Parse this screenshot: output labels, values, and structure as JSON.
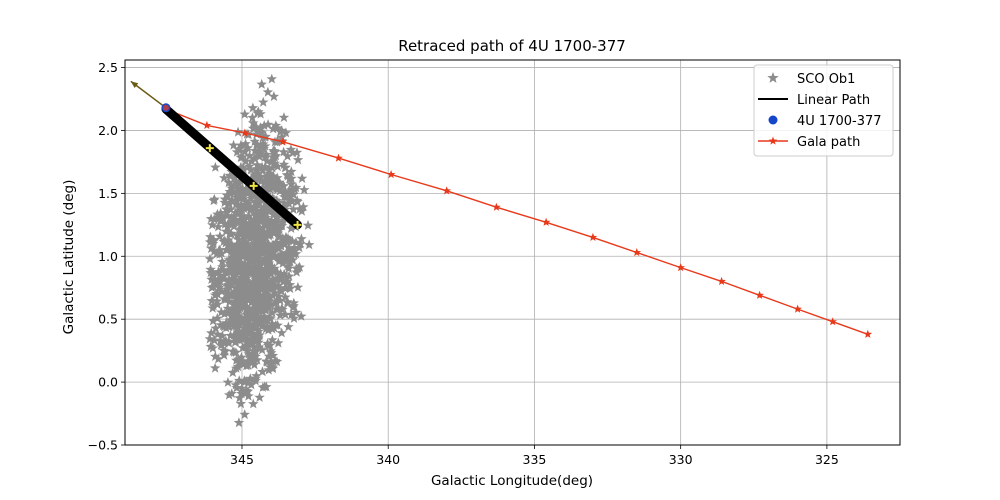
{
  "chart_data": {
    "type": "scatter",
    "title": "Retraced path of 4U 1700-377",
    "xlabel": "Galactic Longitude(deg)",
    "ylabel": "Galactic Latitude (deg)",
    "xlim": [
      349.0,
      322.5
    ],
    "ylim": [
      -0.5,
      2.56
    ],
    "x_inverted": true,
    "xticks": [
      345,
      340,
      335,
      330,
      325
    ],
    "yticks": [
      -0.5,
      0.0,
      0.5,
      1.0,
      1.5,
      2.0,
      2.5
    ],
    "xtick_labels": [
      "345",
      "340",
      "335",
      "330",
      "325"
    ],
    "ytick_labels": [
      "−0.5",
      "0.0",
      "0.5",
      "1.0",
      "1.5",
      "2.0",
      "2.5"
    ],
    "grid": true,
    "legend_position": "top-right",
    "legend": {
      "entries": [
        "SCO Ob1",
        "Linear Path",
        "4U 1700-377",
        "Gala path"
      ]
    },
    "colors": {
      "sco": "#8c8c8c",
      "linear": "#000000",
      "source": "#1346c9",
      "gala": "#e8391b",
      "arrow": "#6b5a12",
      "cross": "#f0e442",
      "grid": "#b0b0b0"
    },
    "series": [
      {
        "name": "SCO Ob1",
        "kind": "scatter",
        "marker": "star",
        "cluster": {
          "center_l": 344.6,
          "center_b": 1.0,
          "l_range": [
            342.7,
            346.1
          ],
          "b_range": [
            -0.38,
            2.44
          ],
          "count": 1200
        }
      },
      {
        "name": "Linear Path",
        "kind": "line",
        "start": [
          347.6,
          2.17
        ],
        "end": [
          343.1,
          1.25
        ]
      },
      {
        "name": "4U 1700-377",
        "kind": "point",
        "l": 347.6,
        "b": 2.18
      },
      {
        "name": "Gala path",
        "kind": "line",
        "marker": "star",
        "l": [
          347.6,
          346.2,
          344.9,
          343.6,
          341.7,
          339.9,
          338.0,
          336.3,
          334.6,
          333.0,
          331.5,
          330.0,
          328.6,
          327.3,
          326.0,
          324.8,
          323.6
        ],
        "b": [
          2.17,
          2.04,
          1.98,
          1.91,
          1.78,
          1.65,
          1.52,
          1.39,
          1.27,
          1.15,
          1.03,
          0.91,
          0.8,
          0.69,
          0.58,
          0.48,
          0.38
        ]
      }
    ],
    "linear_path_markers": {
      "l": [
        346.1,
        344.6,
        343.1
      ],
      "b": [
        1.86,
        1.56,
        1.25
      ]
    },
    "arrow": {
      "from": [
        347.6,
        2.18
      ],
      "to": [
        348.8,
        2.39
      ]
    }
  }
}
